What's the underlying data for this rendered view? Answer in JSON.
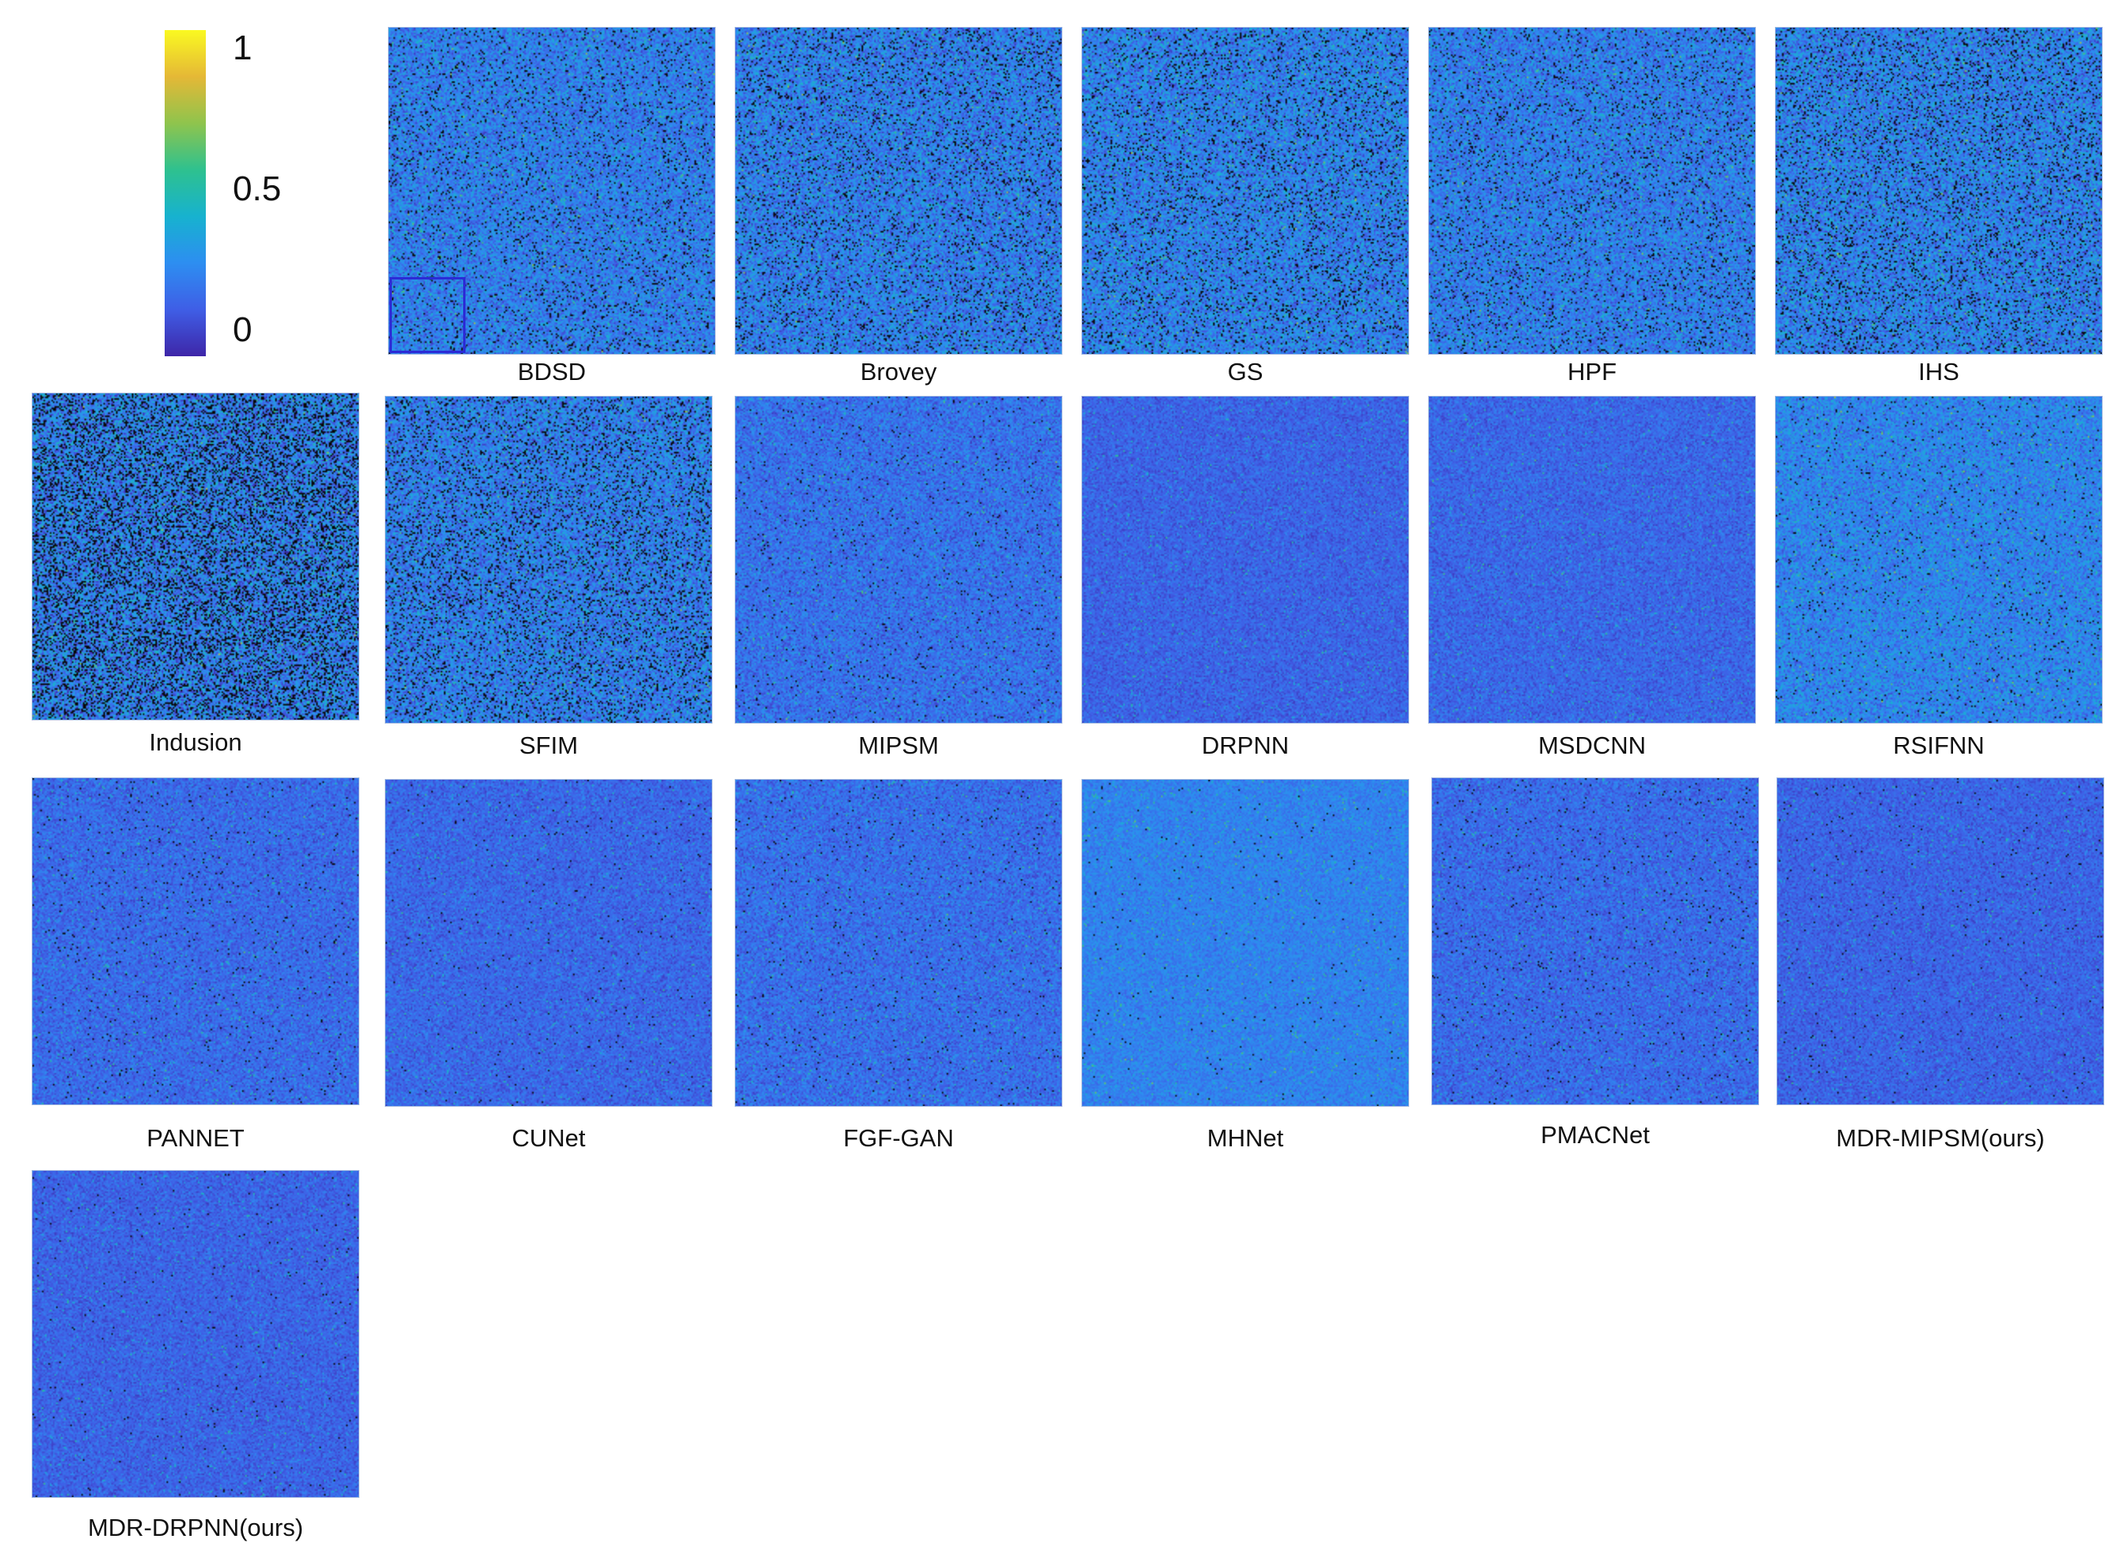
{
  "colorbar": {
    "ticks": [
      {
        "label": "1",
        "value": 1
      },
      {
        "label": "0.5",
        "value": 0.5
      },
      {
        "label": "0",
        "value": 0
      }
    ],
    "colors": [
      "#3e26a8",
      "#3f5ee6",
      "#2d8ef1",
      "#17b2cf",
      "#2ec18f",
      "#8fc44d",
      "#e5b836",
      "#faf921"
    ]
  },
  "panels": [
    {
      "caption": "BDSD",
      "has_inset": true
    },
    {
      "caption": "Brovey"
    },
    {
      "caption": "GS"
    },
    {
      "caption": "HPF"
    },
    {
      "caption": "IHS"
    },
    {
      "caption": "Indusion"
    },
    {
      "caption": "SFIM"
    },
    {
      "caption": "MIPSM"
    },
    {
      "caption": "DRPNN"
    },
    {
      "caption": "MSDCNN"
    },
    {
      "caption": "RSIFNN"
    },
    {
      "caption": "PANNET"
    },
    {
      "caption": "CUNet"
    },
    {
      "caption": "FGF-GAN"
    },
    {
      "caption": "MHNet"
    },
    {
      "caption": "PMACNet"
    },
    {
      "caption": "MDR-MIPSM(ours)"
    },
    {
      "caption": "MDR-DRPNN(ours)"
    }
  ]
}
